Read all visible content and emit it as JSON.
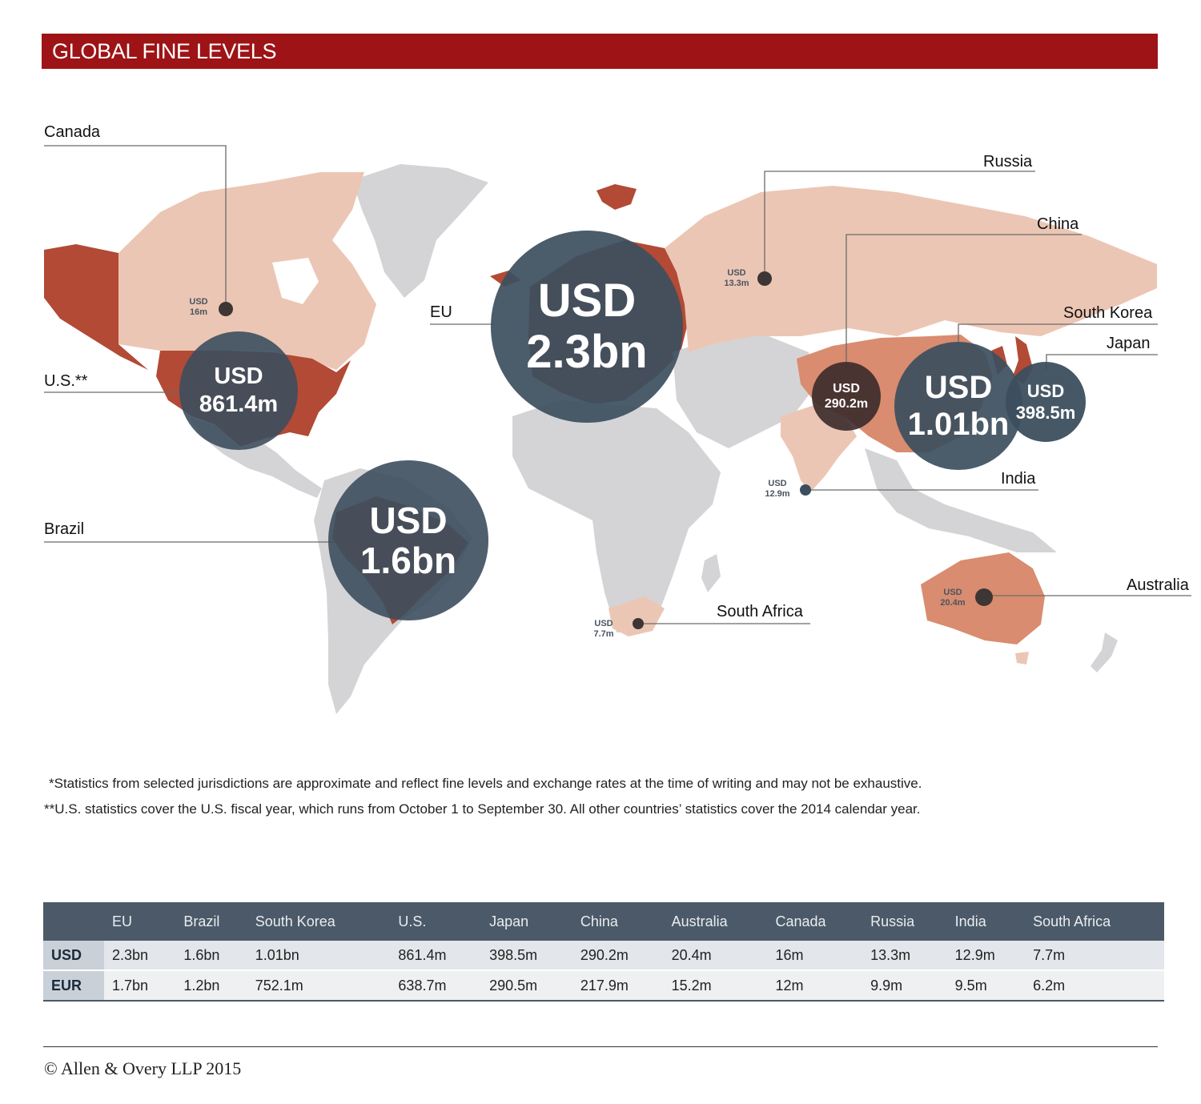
{
  "title": "GLOBAL FINE LEVELS",
  "colors": {
    "title_bar": "#9d1316",
    "land": "#d4d4d6",
    "light": "#ecc6b4",
    "medium": "#d98c6f",
    "dark": "#b24a35",
    "bubble": "#3c4e5e"
  },
  "map": {
    "labels": {
      "canada": "Canada",
      "us": "U.S.**",
      "brazil": "Brazil",
      "eu": "EU",
      "russia": "Russia",
      "china": "China",
      "south_korea": "South Korea",
      "japan": "Japan",
      "india": "India",
      "south_africa": "South Africa",
      "australia": "Australia"
    },
    "bubbles": {
      "eu": {
        "currency": "USD",
        "amount": "2.3bn"
      },
      "brazil": {
        "currency": "USD",
        "amount": "1.6bn"
      },
      "south_korea": {
        "currency": "USD",
        "amount": "1.01bn"
      },
      "us": {
        "currency": "USD",
        "amount": "861.4m"
      },
      "japan": {
        "currency": "USD",
        "amount": "398.5m"
      },
      "china": {
        "currency": "USD",
        "amount": "290.2m"
      }
    },
    "small": {
      "canada": {
        "currency": "USD",
        "amount": "16m"
      },
      "russia": {
        "currency": "USD",
        "amount": "13.3m"
      },
      "india": {
        "currency": "USD",
        "amount": "12.9m"
      },
      "australia": {
        "currency": "USD",
        "amount": "20.4m"
      },
      "south_africa": {
        "currency": "USD",
        "amount": "7.7m"
      }
    }
  },
  "notes": {
    "n1": "*Statistics from selected jurisdictions are approximate and reflect fine levels and exchange rates at the time of writing and may not be exhaustive.",
    "n2": "**U.S. statistics cover the U.S. fiscal year, which runs from October 1 to September 30. All other countries’ statistics cover the 2014 calendar year."
  },
  "table": {
    "columns": [
      "EU",
      "Brazil",
      "South Korea",
      "U.S.",
      "Japan",
      "China",
      "Australia",
      "Canada",
      "Russia",
      "India",
      "South Africa"
    ],
    "rows": [
      {
        "label": "USD",
        "values": [
          "2.3bn",
          "1.6bn",
          "1.01bn",
          "861.4m",
          "398.5m",
          "290.2m",
          "20.4m",
          "16m",
          "13.3m",
          "12.9m",
          "7.7m"
        ]
      },
      {
        "label": "EUR",
        "values": [
          "1.7bn",
          "1.2bn",
          "752.1m",
          "638.7m",
          "290.5m",
          "217.9m",
          "15.2m",
          "12m",
          "9.9m",
          "9.5m",
          "6.2m"
        ]
      }
    ]
  },
  "copyright": "© Allen & Overy LLP 2015"
}
